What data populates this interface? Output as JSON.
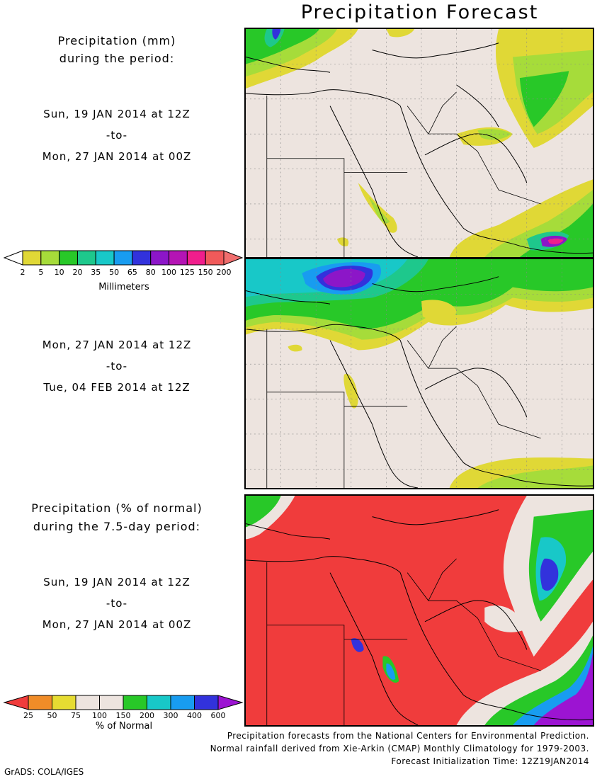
{
  "header": {
    "title": "Precipitation Forecast"
  },
  "panel1": {
    "label_line1": "Precipitation (mm)",
    "label_line2": "during the period:",
    "start": "Sun, 19 JAN 2014 at 12Z",
    "to": "-to-",
    "end": "Mon, 27 JAN 2014 at 00Z"
  },
  "panel2": {
    "start": "Mon, 27 JAN 2014 at 12Z",
    "to": "-to-",
    "end": "Tue, 04 FEB 2014 at 12Z"
  },
  "panel3": {
    "label_line1": "Precipitation (% of normal)",
    "label_line2": "during the 7.5-day period:",
    "start": "Sun, 19 JAN 2014 at 12Z",
    "to": "-to-",
    "end": "Mon, 27 JAN 2014 at 00Z"
  },
  "colorbar_mm": {
    "title": "Millimeters",
    "ticks": [
      "2",
      "5",
      "10",
      "20",
      "35",
      "50",
      "65",
      "80",
      "100",
      "125",
      "150",
      "200"
    ],
    "colors": [
      "#ffffff",
      "#e0d836",
      "#a6dc3a",
      "#28c828",
      "#1ec88c",
      "#18c8c8",
      "#189cf0",
      "#3232dc",
      "#8c16c8",
      "#b414b4",
      "#f01e8c",
      "#f05a5a",
      "#f06e6e"
    ]
  },
  "colorbar_pct": {
    "title": "% of Normal",
    "ticks": [
      "25",
      "50",
      "75",
      "100",
      "150",
      "200",
      "300",
      "400",
      "600"
    ],
    "colors": [
      "#f03c3c",
      "#f08c28",
      "#e6dc32",
      "#ede4df",
      "#ede4df",
      "#28c828",
      "#18c8c8",
      "#189cf0",
      "#3232dc",
      "#9c14d2"
    ]
  },
  "footer": {
    "line1": "Precipitation forecasts from the National Centers for Environmental Prediction.",
    "line2": "Normal rainfall derived from Xie-Arkin (CMAP) Monthly Climatology for 1979-2003.",
    "line3": "Forecast Initialization Time: 12Z19JAN2014",
    "credit": "GrADS: COLA/IGES"
  }
}
